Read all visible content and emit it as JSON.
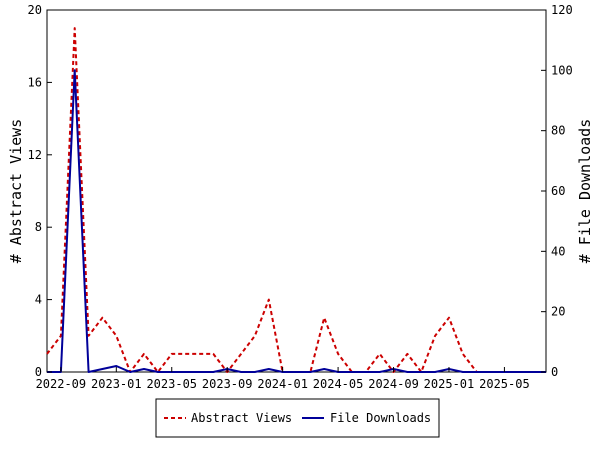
{
  "chart_data": {
    "type": "line",
    "x": [
      "2022-08",
      "2022-09",
      "2022-10",
      "2022-11",
      "2022-12",
      "2023-01",
      "2023-02",
      "2023-03",
      "2023-04",
      "2023-05",
      "2023-06",
      "2023-07",
      "2023-08",
      "2023-09",
      "2023-10",
      "2023-11",
      "2023-12",
      "2024-01",
      "2024-02",
      "2024-03",
      "2024-04",
      "2024-05",
      "2024-06",
      "2024-07",
      "2024-08",
      "2024-09",
      "2024-10",
      "2024-11",
      "2024-12",
      "2025-01",
      "2025-02",
      "2025-03",
      "2025-04",
      "2025-05",
      "2025-06",
      "2025-07",
      "2025-08"
    ],
    "series": [
      {
        "name": "Abstract Views",
        "axis": "left",
        "color": "#cc0000",
        "dash": "dashed",
        "values": [
          1,
          2,
          19,
          2,
          3,
          2,
          0,
          1,
          0,
          1,
          1,
          1,
          1,
          0,
          1,
          2,
          4,
          0,
          0,
          0,
          3,
          1,
          0,
          0,
          1,
          0,
          1,
          0,
          2,
          3,
          1,
          0,
          0,
          0,
          0,
          0,
          0
        ]
      },
      {
        "name": "File Downloads",
        "axis": "right",
        "color": "#000099",
        "dash": "solid",
        "values": [
          0,
          0,
          100,
          0,
          1,
          2,
          0,
          1,
          0,
          0,
          0,
          0,
          0,
          1,
          0,
          0,
          1,
          0,
          0,
          0,
          1,
          0,
          0,
          0,
          0,
          1,
          0,
          0,
          0,
          1,
          0,
          0,
          0,
          0,
          0,
          0,
          0
        ]
      }
    ],
    "xticks": [
      "2022-09",
      "2023-01",
      "2023-05",
      "2023-09",
      "2024-01",
      "2024-05",
      "2024-09",
      "2025-01",
      "2025-05"
    ],
    "ylabel": "# Abstract Views",
    "y2label": "# File Downloads",
    "ylim": [
      0,
      20
    ],
    "y2lim": [
      0,
      120
    ],
    "yticks": [
      0,
      4,
      8,
      12,
      16,
      20
    ],
    "y2ticks": [
      0,
      20,
      40,
      60,
      80,
      100,
      120
    ],
    "grid": false,
    "legend": "bottom"
  }
}
